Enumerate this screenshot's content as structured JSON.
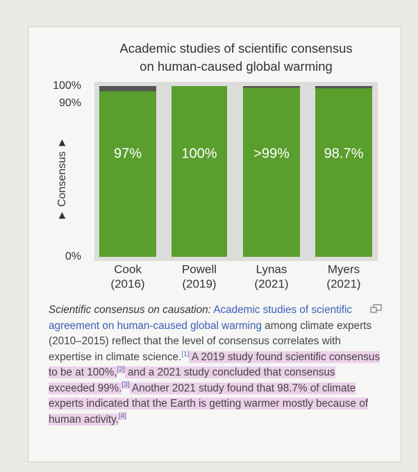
{
  "chart_data": {
    "type": "bar",
    "title": [
      "Academic studies of scientific consensus",
      "on human-caused global warming"
    ],
    "y_label": "► Consensus ►",
    "categories": [
      [
        "Cook",
        "(2016)"
      ],
      [
        "Powell",
        "(2019)"
      ],
      [
        "Lynas",
        "(2021)"
      ],
      [
        "Myers",
        "(2021)"
      ]
    ],
    "values": [
      97,
      100,
      99,
      98.7
    ],
    "value_labels": [
      "97%",
      "100%",
      ">99%",
      "98.7%"
    ],
    "color": "#5a9e2e",
    "ylim": [
      0,
      100
    ],
    "yticks": [
      {
        "value": 0,
        "label": "0%"
      },
      {
        "value": 90,
        "label": "90%"
      },
      {
        "value": 100,
        "label": "100%"
      }
    ]
  },
  "caption": {
    "lead": "Scientific consensus on causation:",
    "link": "Academic studies of scientific agreement on human-caused global warming",
    "text1": " among climate experts (2010–2015) reflect that the level of consensus correlates with expertise in climate science.",
    "ref1": "[1]",
    "text2": " A 2019 study found scientific consensus to be at 100%,",
    "ref2": "[2]",
    "text3": " and a 2021 study concluded that consensus exceeded 99%.",
    "ref3": "[3]",
    "text4": " Another 2021 study found that 98.7% of climate experts indicated that the Earth is getting warmer mostly because of human activity.",
    "ref4": "[4]"
  }
}
